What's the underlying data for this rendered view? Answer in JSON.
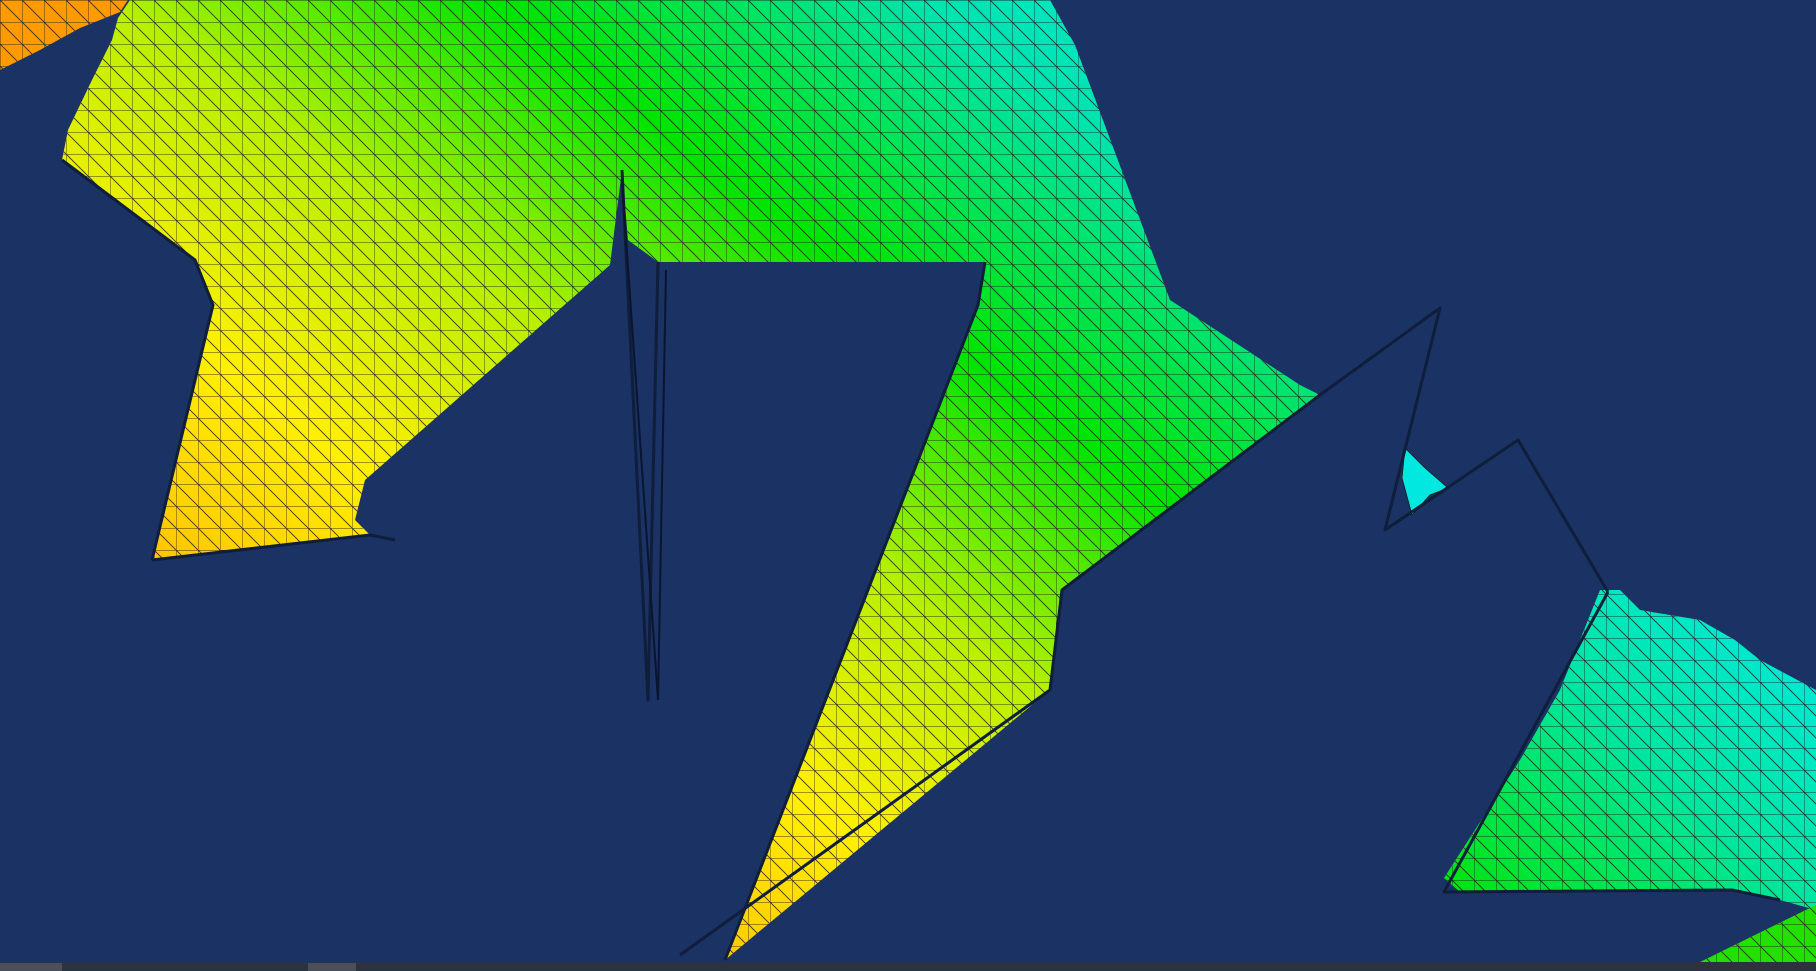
{
  "viewport": {
    "description_label": "",
    "background_color": "#1b3264",
    "outline_color": "#0f1e3a",
    "mesh_line_color": "#1a1a12",
    "colormap": [
      "#ff6a00",
      "#ffa500",
      "#ffea00",
      "#c8f000",
      "#00e400",
      "#00e0c8",
      "#00e8e8"
    ]
  },
  "statusbar": {
    "background_color": "#2b3240",
    "chip_color": "#4a4f59"
  }
}
